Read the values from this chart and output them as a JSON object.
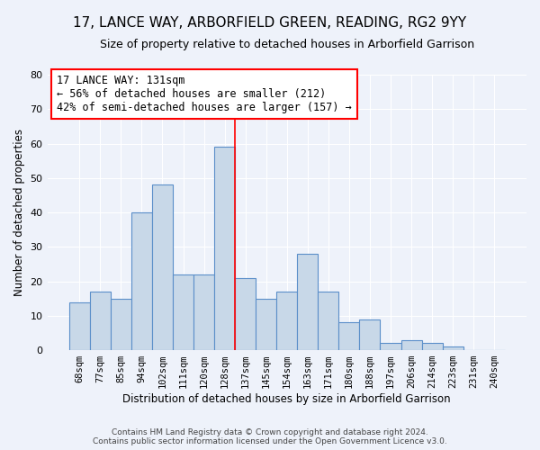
{
  "title": "17, LANCE WAY, ARBORFIELD GREEN, READING, RG2 9YY",
  "subtitle": "Size of property relative to detached houses in Arborfield Garrison",
  "xlabel": "Distribution of detached houses by size in Arborfield Garrison",
  "ylabel": "Number of detached properties",
  "categories": [
    "68sqm",
    "77sqm",
    "85sqm",
    "94sqm",
    "102sqm",
    "111sqm",
    "120sqm",
    "128sqm",
    "137sqm",
    "145sqm",
    "154sqm",
    "163sqm",
    "171sqm",
    "180sqm",
    "188sqm",
    "197sqm",
    "206sqm",
    "214sqm",
    "223sqm",
    "231sqm",
    "240sqm"
  ],
  "values": [
    14,
    17,
    15,
    40,
    48,
    22,
    22,
    59,
    21,
    15,
    17,
    28,
    17,
    8,
    9,
    2,
    3,
    2,
    1,
    0,
    0
  ],
  "bar_color": "#c8d8e8",
  "bar_edge_color": "#5b8fc9",
  "vline_color": "red",
  "ylim": [
    0,
    80
  ],
  "yticks": [
    0,
    10,
    20,
    30,
    40,
    50,
    60,
    70,
    80
  ],
  "annotation_title": "17 LANCE WAY: 131sqm",
  "annotation_line1": "← 56% of detached houses are smaller (212)",
  "annotation_line2": "42% of semi-detached houses are larger (157) →",
  "annotation_box_color": "white",
  "annotation_box_edge": "red",
  "footer1": "Contains HM Land Registry data © Crown copyright and database right 2024.",
  "footer2": "Contains public sector information licensed under the Open Government Licence v3.0.",
  "background_color": "#eef2fa",
  "title_fontsize": 11,
  "subtitle_fontsize": 9,
  "annotation_fontsize": 8.5,
  "ylabel_fontsize": 8.5,
  "xlabel_fontsize": 8.5,
  "tick_fontsize": 7.5
}
